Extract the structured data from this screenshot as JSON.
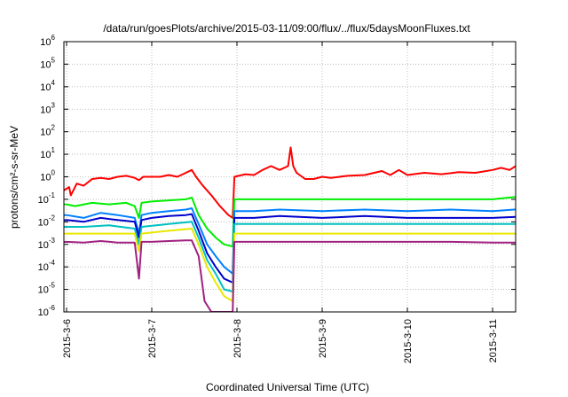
{
  "chart_data": {
    "type": "line",
    "title": "/data/run/goesPlots/archive/2015-03-11/09:00/flux/../flux/5daysMoonFluxes.txt",
    "xlabel": "Coordinated Universal Time (UTC)",
    "ylabel": "protons/cm²-s-sr-MeV",
    "yscale": "log",
    "ylim": [
      1e-06,
      1000000.0
    ],
    "xlim": [
      0,
      5.48
    ],
    "x_ticks": [
      {
        "x": 0,
        "label": "2015-3-6"
      },
      {
        "x": 1,
        "label": "2015-3-7"
      },
      {
        "x": 2,
        "label": "2015-3-8"
      },
      {
        "x": 3,
        "label": "2015-3-9"
      },
      {
        "x": 4,
        "label": "2015-3-10"
      },
      {
        "x": 5,
        "label": "2015-3-11"
      }
    ],
    "y_ticks": [
      {
        "exp": -6,
        "label": "10",
        "sup": "-6"
      },
      {
        "exp": -5,
        "label": "10",
        "sup": "-5"
      },
      {
        "exp": -4,
        "label": "10",
        "sup": "-4"
      },
      {
        "exp": -3,
        "label": "10",
        "sup": "-3"
      },
      {
        "exp": -2,
        "label": "10",
        "sup": "-2"
      },
      {
        "exp": -1,
        "label": "10",
        "sup": "-1"
      },
      {
        "exp": 0,
        "label": "10",
        "sup": "0"
      },
      {
        "exp": 1,
        "label": "10",
        "sup": "1"
      },
      {
        "exp": 2,
        "label": "10",
        "sup": "2"
      },
      {
        "exp": 3,
        "label": "10",
        "sup": "3"
      },
      {
        "exp": 4,
        "label": "10",
        "sup": "4"
      },
      {
        "exp": 5,
        "label": "10",
        "sup": "5"
      },
      {
        "exp": 6,
        "label": "10",
        "sup": "6"
      }
    ],
    "grid": true,
    "series": [
      {
        "color": "#ff0000",
        "points": [
          [
            -0.18,
            0.4
          ],
          [
            -0.1,
            0.3
          ],
          [
            -0.03,
            0.25
          ],
          [
            0.03,
            0.35
          ],
          [
            0.05,
            0.15
          ],
          [
            0.12,
            0.5
          ],
          [
            0.2,
            0.4
          ],
          [
            0.3,
            0.8
          ],
          [
            0.4,
            0.9
          ],
          [
            0.5,
            0.8
          ],
          [
            0.6,
            1.0
          ],
          [
            0.7,
            1.1
          ],
          [
            0.8,
            0.9
          ],
          [
            0.85,
            0.7
          ],
          [
            0.9,
            1.0
          ],
          [
            1.0,
            1.0
          ],
          [
            1.1,
            1.0
          ],
          [
            1.2,
            1.2
          ],
          [
            1.3,
            1.0
          ],
          [
            1.4,
            1.5
          ],
          [
            1.47,
            2.0
          ],
          [
            1.52,
            1.0
          ],
          [
            1.6,
            0.4
          ],
          [
            1.7,
            0.15
          ],
          [
            1.8,
            0.05
          ],
          [
            1.9,
            0.02
          ],
          [
            1.95,
            0.015
          ],
          [
            1.97,
            1.0
          ],
          [
            2.1,
            1.3
          ],
          [
            2.2,
            1.2
          ],
          [
            2.3,
            2.0
          ],
          [
            2.4,
            3.0
          ],
          [
            2.5,
            2.0
          ],
          [
            2.6,
            3.0
          ],
          [
            2.63,
            20
          ],
          [
            2.66,
            3.0
          ],
          [
            2.7,
            1.5
          ],
          [
            2.8,
            0.8
          ],
          [
            2.9,
            0.8
          ],
          [
            3.0,
            1.0
          ],
          [
            3.1,
            0.9
          ],
          [
            3.3,
            1.1
          ],
          [
            3.5,
            1.2
          ],
          [
            3.7,
            1.8
          ],
          [
            3.8,
            1.2
          ],
          [
            3.9,
            2.0
          ],
          [
            4.0,
            1.2
          ],
          [
            4.2,
            1.5
          ],
          [
            4.4,
            1.3
          ],
          [
            4.6,
            1.6
          ],
          [
            4.8,
            1.5
          ],
          [
            5.0,
            2.0
          ],
          [
            5.1,
            2.5
          ],
          [
            5.2,
            2.0
          ],
          [
            5.3,
            3.5
          ],
          [
            5.4,
            2.5
          ],
          [
            5.47,
            4.0
          ]
        ]
      },
      {
        "color": "#00ee00",
        "points": [
          [
            -0.18,
            0.06
          ],
          [
            0.0,
            0.06
          ],
          [
            0.1,
            0.05
          ],
          [
            0.3,
            0.07
          ],
          [
            0.5,
            0.06
          ],
          [
            0.7,
            0.07
          ],
          [
            0.8,
            0.05
          ],
          [
            0.85,
            0.015
          ],
          [
            0.88,
            0.07
          ],
          [
            1.0,
            0.08
          ],
          [
            1.2,
            0.09
          ],
          [
            1.4,
            0.1
          ],
          [
            1.47,
            0.12
          ],
          [
            1.55,
            0.02
          ],
          [
            1.65,
            0.005
          ],
          [
            1.75,
            0.002
          ],
          [
            1.85,
            0.001
          ],
          [
            1.95,
            0.0008
          ],
          [
            1.97,
            0.1
          ],
          [
            2.2,
            0.1
          ],
          [
            2.5,
            0.1
          ],
          [
            3.0,
            0.1
          ],
          [
            3.5,
            0.1
          ],
          [
            4.0,
            0.1
          ],
          [
            4.5,
            0.1
          ],
          [
            5.0,
            0.1
          ],
          [
            5.47,
            0.15
          ]
        ]
      },
      {
        "color": "#0080ff",
        "points": [
          [
            -0.18,
            0.02
          ],
          [
            0.0,
            0.02
          ],
          [
            0.2,
            0.015
          ],
          [
            0.4,
            0.025
          ],
          [
            0.6,
            0.02
          ],
          [
            0.8,
            0.015
          ],
          [
            0.85,
            0.003
          ],
          [
            0.88,
            0.02
          ],
          [
            1.0,
            0.025
          ],
          [
            1.2,
            0.03
          ],
          [
            1.4,
            0.035
          ],
          [
            1.47,
            0.04
          ],
          [
            1.55,
            0.008
          ],
          [
            1.65,
            0.001
          ],
          [
            1.75,
            0.0003
          ],
          [
            1.85,
            0.0001
          ],
          [
            1.95,
            5e-05
          ],
          [
            1.97,
            0.03
          ],
          [
            2.2,
            0.03
          ],
          [
            2.5,
            0.035
          ],
          [
            3.0,
            0.03
          ],
          [
            3.5,
            0.035
          ],
          [
            4.0,
            0.03
          ],
          [
            4.5,
            0.035
          ],
          [
            5.0,
            0.03
          ],
          [
            5.47,
            0.04
          ]
        ]
      },
      {
        "color": "#0000cc",
        "points": [
          [
            -0.18,
            0.01
          ],
          [
            0.0,
            0.012
          ],
          [
            0.2,
            0.01
          ],
          [
            0.4,
            0.015
          ],
          [
            0.6,
            0.012
          ],
          [
            0.8,
            0.01
          ],
          [
            0.85,
            0.002
          ],
          [
            0.88,
            0.012
          ],
          [
            1.0,
            0.015
          ],
          [
            1.2,
            0.018
          ],
          [
            1.4,
            0.02
          ],
          [
            1.47,
            0.022
          ],
          [
            1.55,
            0.004
          ],
          [
            1.65,
            0.0004
          ],
          [
            1.75,
            0.0001
          ],
          [
            1.85,
            3e-05
          ],
          [
            1.95,
            2e-05
          ],
          [
            1.97,
            0.015
          ],
          [
            2.2,
            0.015
          ],
          [
            2.5,
            0.018
          ],
          [
            3.0,
            0.015
          ],
          [
            3.5,
            0.018
          ],
          [
            4.0,
            0.015
          ],
          [
            4.5,
            0.015
          ],
          [
            5.0,
            0.015
          ],
          [
            5.47,
            0.018
          ]
        ]
      },
      {
        "color": "#00c0c0",
        "points": [
          [
            -0.18,
            0.006
          ],
          [
            0.2,
            0.006
          ],
          [
            0.5,
            0.007
          ],
          [
            0.8,
            0.005
          ],
          [
            0.85,
            0.001
          ],
          [
            0.88,
            0.006
          ],
          [
            1.2,
            0.008
          ],
          [
            1.47,
            0.01
          ],
          [
            1.55,
            0.002
          ],
          [
            1.65,
            0.0002
          ],
          [
            1.75,
            5e-05
          ],
          [
            1.85,
            1e-05
          ],
          [
            1.95,
            8e-06
          ],
          [
            1.97,
            0.008
          ],
          [
            2.5,
            0.008
          ],
          [
            3.0,
            0.008
          ],
          [
            3.5,
            0.008
          ],
          [
            4.0,
            0.008
          ],
          [
            4.5,
            0.008
          ],
          [
            5.0,
            0.008
          ],
          [
            5.47,
            0.008
          ]
        ]
      },
      {
        "color": "#e8e800",
        "points": [
          [
            -0.18,
            0.003
          ],
          [
            0.2,
            0.003
          ],
          [
            0.5,
            0.003
          ],
          [
            0.8,
            0.003
          ],
          [
            0.85,
            0.0005
          ],
          [
            0.88,
            0.003
          ],
          [
            1.2,
            0.004
          ],
          [
            1.47,
            0.005
          ],
          [
            1.55,
            0.001
          ],
          [
            1.65,
            0.0001
          ],
          [
            1.75,
            2e-05
          ],
          [
            1.85,
            5e-06
          ],
          [
            1.95,
            3e-06
          ],
          [
            1.97,
            0.003
          ],
          [
            2.5,
            0.003
          ],
          [
            3.0,
            0.003
          ],
          [
            3.5,
            0.003
          ],
          [
            4.0,
            0.003
          ],
          [
            4.5,
            0.003
          ],
          [
            5.0,
            0.003
          ],
          [
            5.47,
            0.003
          ]
        ]
      },
      {
        "color": "#a02080",
        "points": [
          [
            -0.18,
            0.0012
          ],
          [
            0.0,
            0.0013
          ],
          [
            0.2,
            0.0012
          ],
          [
            0.4,
            0.0014
          ],
          [
            0.6,
            0.0012
          ],
          [
            0.8,
            0.0012
          ],
          [
            0.85,
            3e-05
          ],
          [
            0.88,
            0.0013
          ],
          [
            1.0,
            0.0013
          ],
          [
            1.2,
            0.0014
          ],
          [
            1.4,
            0.0015
          ],
          [
            1.47,
            0.0015
          ],
          [
            1.55,
            0.0003
          ],
          [
            1.62,
            3e-06
          ],
          [
            1.7,
            1e-06
          ],
          [
            1.95,
            1e-06
          ],
          [
            1.97,
            0.0013
          ],
          [
            2.5,
            0.0013
          ],
          [
            3.0,
            0.0013
          ],
          [
            3.5,
            0.0013
          ],
          [
            4.0,
            0.0013
          ],
          [
            4.5,
            0.0013
          ],
          [
            5.0,
            0.0012
          ],
          [
            5.47,
            0.0012
          ]
        ]
      }
    ]
  }
}
